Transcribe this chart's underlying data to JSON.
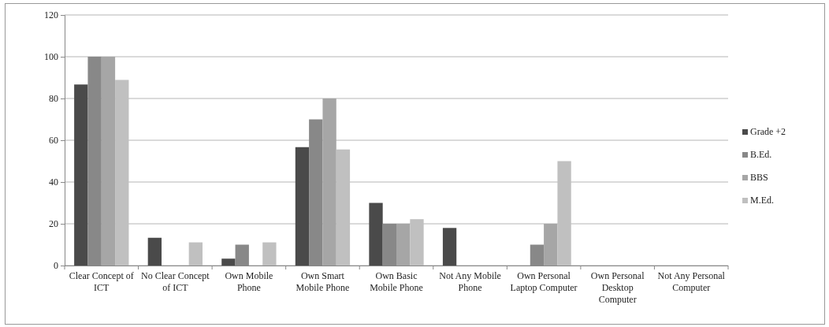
{
  "chart_data": {
    "type": "bar",
    "categories": [
      "Clear Concept of ICT",
      "No Clear Concept of ICT",
      "Own Mobile Phone",
      "Own Smart Mobile Phone",
      "Own Basic Mobile Phone",
      "Not Any Mobile Phone",
      "Own Personal Laptop Computer",
      "Own Personal Desktop Computer",
      "Not Any Personal Computer"
    ],
    "series": [
      {
        "name": "Grade +2",
        "color": "#4a4a4a",
        "values": [
          86.7,
          13.3,
          3.3,
          56.7,
          30,
          18,
          0,
          0,
          0
        ]
      },
      {
        "name": "B.Ed.",
        "color": "#888888",
        "values": [
          100,
          0,
          10,
          70,
          20,
          0,
          10,
          0,
          0
        ]
      },
      {
        "name": "BBS",
        "color": "#a6a6a6",
        "values": [
          100,
          0,
          0,
          80,
          20,
          0,
          20,
          0,
          0
        ]
      },
      {
        "name": "M.Ed.",
        "color": "#c0c0c0",
        "values": [
          88.9,
          11.1,
          11.1,
          55.6,
          22.2,
          0,
          50,
          0,
          0
        ]
      }
    ],
    "ylim": [
      0,
      120
    ],
    "yticks": [
      0,
      20,
      40,
      60,
      80,
      100,
      120
    ],
    "grid": "y",
    "legend": "right"
  }
}
